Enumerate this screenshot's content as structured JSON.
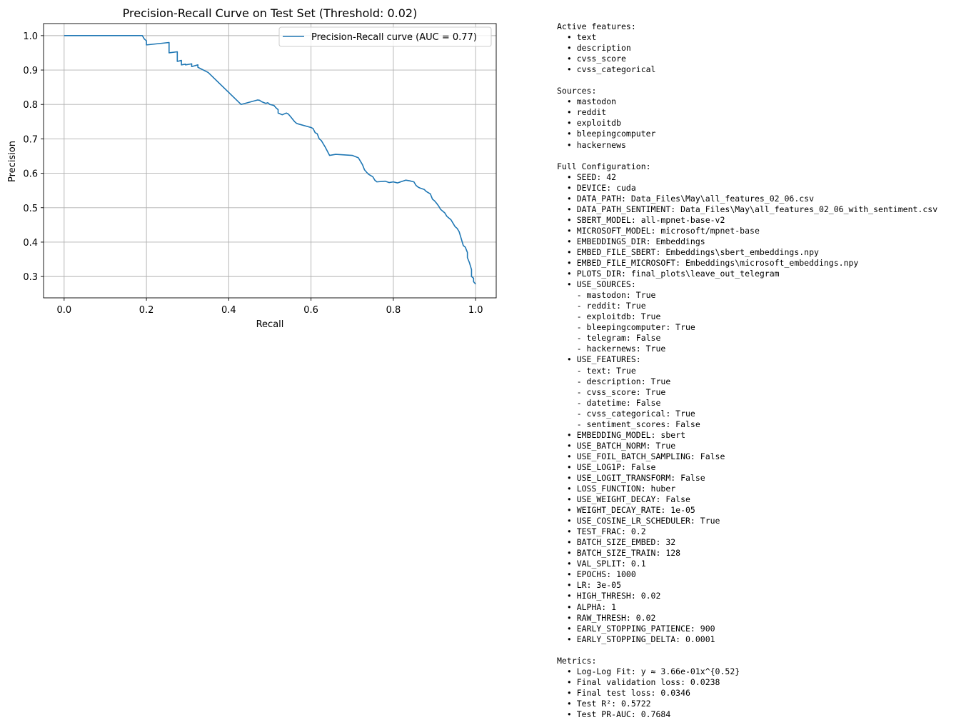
{
  "chart_data": {
    "type": "line",
    "title": "Precision-Recall Curve on Test Set (Threshold: 0.02)",
    "xlabel": "Recall",
    "ylabel": "Precision",
    "xlim": [
      -0.05,
      1.05
    ],
    "ylim": [
      0.238,
      1.035
    ],
    "xticks": [
      0.0,
      0.2,
      0.4,
      0.6,
      0.8,
      1.0
    ],
    "xtick_labels": [
      "0.0",
      "0.2",
      "0.4",
      "0.6",
      "0.8",
      "1.0"
    ],
    "yticks": [
      0.3,
      0.4,
      0.5,
      0.6,
      0.7,
      0.8,
      0.9,
      1.0
    ],
    "ytick_labels": [
      "0.3",
      "0.4",
      "0.5",
      "0.6",
      "0.7",
      "0.8",
      "0.9",
      "1.0"
    ],
    "grid": true,
    "legend_position": "top-right",
    "line_color": "#1f77b4",
    "grid_color": "#b0b0b0",
    "series": [
      {
        "name": "Precision-Recall curve (AUC = 0.77)",
        "x": [
          0.0,
          0.19,
          0.195,
          0.2,
          0.2,
          0.255,
          0.255,
          0.275,
          0.275,
          0.285,
          0.285,
          0.295,
          0.295,
          0.31,
          0.31,
          0.325,
          0.325,
          0.33,
          0.35,
          0.43,
          0.47,
          0.475,
          0.48,
          0.49,
          0.495,
          0.5,
          0.51,
          0.515,
          0.52,
          0.52,
          0.53,
          0.54,
          0.545,
          0.55,
          0.56,
          0.565,
          0.57,
          0.6,
          0.605,
          0.61,
          0.615,
          0.62,
          0.625,
          0.63,
          0.635,
          0.645,
          0.66,
          0.7,
          0.715,
          0.72,
          0.725,
          0.73,
          0.735,
          0.74,
          0.75,
          0.755,
          0.76,
          0.78,
          0.79,
          0.8,
          0.81,
          0.83,
          0.84,
          0.85,
          0.855,
          0.86,
          0.865,
          0.875,
          0.88,
          0.89,
          0.895,
          0.9,
          0.905,
          0.91,
          0.915,
          0.92,
          0.925,
          0.93,
          0.935,
          0.94,
          0.945,
          0.95,
          0.955,
          0.96,
          0.965,
          0.97,
          0.975,
          0.98,
          0.98,
          0.985,
          0.99,
          0.99,
          0.995,
          0.995,
          1.0
        ],
        "y": [
          1.0,
          1.0,
          0.99,
          0.985,
          0.973,
          0.98,
          0.95,
          0.953,
          0.925,
          0.928,
          0.915,
          0.917,
          0.915,
          0.918,
          0.91,
          0.915,
          0.908,
          0.905,
          0.893,
          0.8,
          0.813,
          0.812,
          0.808,
          0.803,
          0.805,
          0.8,
          0.797,
          0.79,
          0.785,
          0.775,
          0.77,
          0.775,
          0.772,
          0.765,
          0.75,
          0.745,
          0.743,
          0.733,
          0.73,
          0.718,
          0.715,
          0.7,
          0.695,
          0.685,
          0.675,
          0.652,
          0.655,
          0.652,
          0.645,
          0.635,
          0.625,
          0.61,
          0.603,
          0.597,
          0.59,
          0.58,
          0.575,
          0.577,
          0.573,
          0.575,
          0.572,
          0.58,
          0.578,
          0.575,
          0.565,
          0.56,
          0.557,
          0.553,
          0.547,
          0.54,
          0.525,
          0.52,
          0.513,
          0.505,
          0.495,
          0.49,
          0.485,
          0.475,
          0.47,
          0.465,
          0.455,
          0.445,
          0.44,
          0.43,
          0.41,
          0.39,
          0.385,
          0.37,
          0.355,
          0.34,
          0.32,
          0.3,
          0.295,
          0.285,
          0.278
        ]
      }
    ]
  },
  "config_text": {
    "lines": [
      "Active features:",
      "  • text",
      "  • description",
      "  • cvss_score",
      "  • cvss_categorical",
      "",
      "Sources:",
      "  • mastodon",
      "  • reddit",
      "  • exploitdb",
      "  • bleepingcomputer",
      "  • hackernews",
      "",
      "Full Configuration:",
      "  • SEED: 42",
      "  • DEVICE: cuda",
      "  • DATA_PATH: Data_Files\\May\\all_features_02_06.csv",
      "  • DATA_PATH_SENTIMENT: Data_Files\\May\\all_features_02_06_with_sentiment.csv",
      "  • SBERT_MODEL: all-mpnet-base-v2",
      "  • MICROSOFT_MODEL: microsoft/mpnet-base",
      "  • EMBEDDINGS_DIR: Embeddings",
      "  • EMBED_FILE_SBERT: Embeddings\\sbert_embeddings.npy",
      "  • EMBED_FILE_MICROSOFT: Embeddings\\microsoft_embeddings.npy",
      "  • PLOTS_DIR: final_plots\\leave_out_telegram",
      "  • USE_SOURCES:",
      "    - mastodon: True",
      "    - reddit: True",
      "    - exploitdb: True",
      "    - bleepingcomputer: True",
      "    - telegram: False",
      "    - hackernews: True",
      "  • USE_FEATURES:",
      "    - text: True",
      "    - description: True",
      "    - cvss_score: True",
      "    - datetime: False",
      "    - cvss_categorical: True",
      "    - sentiment_scores: False",
      "  • EMBEDDING_MODEL: sbert",
      "  • USE_BATCH_NORM: True",
      "  • USE_FOIL_BATCH_SAMPLING: False",
      "  • USE_LOG1P: False",
      "  • USE_LOGIT_TRANSFORM: False",
      "  • LOSS_FUNCTION: huber",
      "  • USE_WEIGHT_DECAY: False",
      "  • WEIGHT_DECAY_RATE: 1e-05",
      "  • USE_COSINE_LR_SCHEDULER: True",
      "  • TEST_FRAC: 0.2",
      "  • BATCH_SIZE_EMBED: 32",
      "  • BATCH_SIZE_TRAIN: 128",
      "  • VAL_SPLIT: 0.1",
      "  • EPOCHS: 1000",
      "  • LR: 3e-05",
      "  • HIGH_THRESH: 0.02",
      "  • ALPHA: 1",
      "  • RAW_THRESH: 0.02",
      "  • EARLY_STOPPING_PATIENCE: 900",
      "  • EARLY_STOPPING_DELTA: 0.0001",
      "",
      "Metrics:",
      "  • Log-Log Fit: y ≈ 3.66e-01x^{0.52}",
      "  • Final validation loss: 0.0238",
      "  • Final test loss: 0.0346",
      "  • Test R²: 0.5722",
      "  • Test PR-AUC: 0.7684"
    ]
  }
}
